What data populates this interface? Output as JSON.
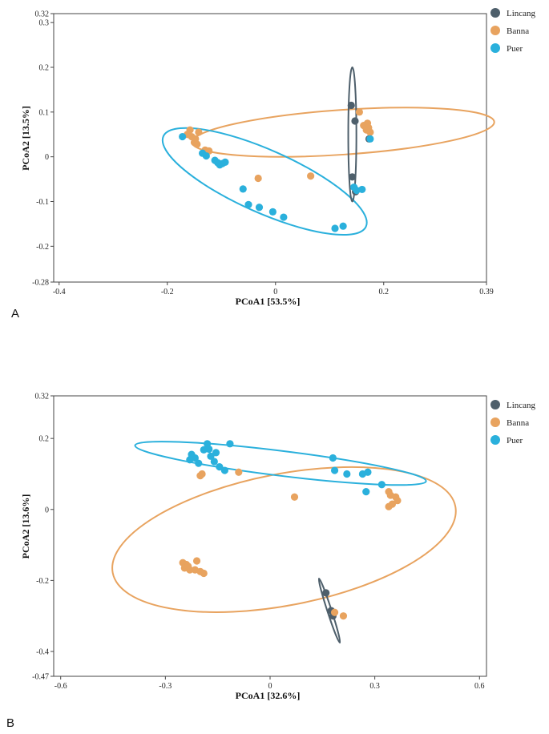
{
  "colors": {
    "Lincang": "#4e5f6b",
    "Banna": "#e8a35f",
    "Puer": "#2ab0dc"
  },
  "chart_data": [
    {
      "type": "scatter",
      "panel_label": "A",
      "xlabel": "PCoA1 [53.5%]",
      "ylabel": "PCoA2 [13.5%]",
      "xlim": [
        -0.41,
        0.39
      ],
      "ylim": [
        -0.28,
        0.32
      ],
      "xticks": [
        {
          "v": -0.4,
          "label": "-0.4"
        },
        {
          "v": -0.2,
          "label": "-0.2"
        },
        {
          "v": 0,
          "label": "0"
        },
        {
          "v": 0.2,
          "label": "0.2"
        },
        {
          "v": 0.39,
          "label": "0.39"
        }
      ],
      "yticks": [
        {
          "v": 0.32,
          "label": "0.32"
        },
        {
          "v": 0.3,
          "label": "0.3"
        },
        {
          "v": 0.2,
          "label": "0.2"
        },
        {
          "v": 0.1,
          "label": "0.1"
        },
        {
          "v": 0,
          "label": "0"
        },
        {
          "v": -0.1,
          "label": "-0.1"
        },
        {
          "v": -0.2,
          "label": "-0.2"
        },
        {
          "v": -0.28,
          "label": "-0.28"
        }
      ],
      "legend": [
        "Lincang",
        "Banna",
        "Puer"
      ],
      "series": [
        {
          "name": "Lincang",
          "points": [
            [
              0.14,
              0.115
            ],
            [
              0.147,
              0.08
            ],
            [
              0.173,
              0.04
            ],
            [
              0.142,
              -0.045
            ],
            [
              0.148,
              -0.078
            ]
          ]
        },
        {
          "name": "Banna",
          "points": [
            [
              -0.158,
              0.06
            ],
            [
              -0.142,
              0.055
            ],
            [
              -0.163,
              0.05
            ],
            [
              -0.155,
              0.045
            ],
            [
              -0.148,
              0.04
            ],
            [
              -0.15,
              0.032
            ],
            [
              -0.145,
              0.028
            ],
            [
              -0.13,
              0.015
            ],
            [
              -0.123,
              0.013
            ],
            [
              -0.032,
              -0.048
            ],
            [
              0.065,
              -0.043
            ],
            [
              0.155,
              0.1
            ],
            [
              0.163,
              0.07
            ],
            [
              0.17,
              0.075
            ],
            [
              0.172,
              0.065
            ],
            [
              0.175,
              0.055
            ],
            [
              0.168,
              0.06
            ]
          ]
        },
        {
          "name": "Puer",
          "points": [
            [
              -0.172,
              0.045
            ],
            [
              -0.135,
              0.008
            ],
            [
              -0.128,
              0.002
            ],
            [
              -0.112,
              -0.008
            ],
            [
              -0.107,
              -0.013
            ],
            [
              -0.103,
              -0.018
            ],
            [
              -0.098,
              -0.015
            ],
            [
              -0.093,
              -0.012
            ],
            [
              -0.06,
              -0.072
            ],
            [
              -0.05,
              -0.107
            ],
            [
              -0.03,
              -0.113
            ],
            [
              -0.005,
              -0.123
            ],
            [
              0.015,
              -0.135
            ],
            [
              0.11,
              -0.16
            ],
            [
              0.125,
              -0.155
            ],
            [
              0.145,
              -0.068
            ],
            [
              0.15,
              -0.075
            ],
            [
              0.16,
              -0.073
            ],
            [
              0.175,
              0.04
            ]
          ]
        }
      ],
      "ellipses": [
        {
          "name": "Banna",
          "cx": 0.125,
          "cy": 0.055,
          "rx": 0.28,
          "ry": 0.05,
          "angle": -3.9
        },
        {
          "name": "Puer",
          "cx": -0.02,
          "cy": -0.055,
          "rx": 0.205,
          "ry": 0.07,
          "angle": 24
        },
        {
          "name": "Lincang",
          "cx": 0.142,
          "cy": 0.05,
          "rx": 0.0075,
          "ry": 0.15,
          "angle": 0
        }
      ]
    },
    {
      "type": "scatter",
      "panel_label": "B",
      "xlabel": "PCoA1 [32.6%]",
      "ylabel": "PCoA2 [13.6%]",
      "xlim": [
        -0.62,
        0.62
      ],
      "ylim": [
        -0.47,
        0.32
      ],
      "xticks": [
        {
          "v": -0.6,
          "label": "-0.6"
        },
        {
          "v": -0.3,
          "label": "-0.3"
        },
        {
          "v": 0,
          "label": "0"
        },
        {
          "v": 0.3,
          "label": "0.3"
        },
        {
          "v": 0.6,
          "label": "0.6"
        }
      ],
      "yticks": [
        {
          "v": 0.32,
          "label": "0.32"
        },
        {
          "v": 0.2,
          "label": "0.2"
        },
        {
          "v": 0,
          "label": "0"
        },
        {
          "v": -0.2,
          "label": "-0.2"
        },
        {
          "v": -0.4,
          "label": "-0.4"
        },
        {
          "v": -0.47,
          "label": "-0.47"
        }
      ],
      "legend": [
        "Lincang",
        "Banna",
        "Puer"
      ],
      "series": [
        {
          "name": "Lincang",
          "points": [
            [
              0.16,
              -0.235
            ],
            [
              0.175,
              -0.285
            ],
            [
              0.18,
              -0.3
            ]
          ]
        },
        {
          "name": "Banna",
          "points": [
            [
              -0.25,
              -0.15
            ],
            [
              -0.24,
              -0.155
            ],
            [
              -0.245,
              -0.165
            ],
            [
              -0.235,
              -0.16
            ],
            [
              -0.23,
              -0.17
            ],
            [
              -0.21,
              -0.145
            ],
            [
              -0.215,
              -0.17
            ],
            [
              -0.2,
              -0.175
            ],
            [
              -0.19,
              -0.18
            ],
            [
              -0.195,
              0.1
            ],
            [
              -0.2,
              0.095
            ],
            [
              -0.09,
              0.105
            ],
            [
              0.07,
              0.035
            ],
            [
              0.185,
              -0.29
            ],
            [
              0.21,
              -0.3
            ],
            [
              0.34,
              0.05
            ],
            [
              0.345,
              0.04
            ],
            [
              0.36,
              0.035
            ],
            [
              0.365,
              0.025
            ],
            [
              0.35,
              0.015
            ],
            [
              0.34,
              0.008
            ]
          ]
        },
        {
          "name": "Puer",
          "points": [
            [
              -0.225,
              0.155
            ],
            [
              -0.215,
              0.145
            ],
            [
              -0.23,
              0.14
            ],
            [
              -0.205,
              0.13
            ],
            [
              -0.18,
              0.185
            ],
            [
              -0.19,
              0.168
            ],
            [
              -0.175,
              0.17
            ],
            [
              -0.155,
              0.16
            ],
            [
              -0.17,
              0.15
            ],
            [
              -0.16,
              0.135
            ],
            [
              -0.145,
              0.12
            ],
            [
              -0.13,
              0.11
            ],
            [
              -0.115,
              0.185
            ],
            [
              0.18,
              0.145
            ],
            [
              0.185,
              0.11
            ],
            [
              0.22,
              0.1
            ],
            [
              0.265,
              0.1
            ],
            [
              0.28,
              0.105
            ],
            [
              0.32,
              0.07
            ],
            [
              0.275,
              0.05
            ]
          ]
        }
      ],
      "ellipses": [
        {
          "name": "Banna",
          "cx": 0.04,
          "cy": -0.085,
          "rx": 0.5,
          "ry": 0.185,
          "angle": -11
        },
        {
          "name": "Puer",
          "cx": 0.03,
          "cy": 0.13,
          "rx": 0.42,
          "ry": 0.035,
          "angle": 7
        },
        {
          "name": "Lincang",
          "cx": 0.17,
          "cy": -0.285,
          "rx": 0.006,
          "ry": 0.095,
          "angle": -18
        }
      ]
    }
  ]
}
